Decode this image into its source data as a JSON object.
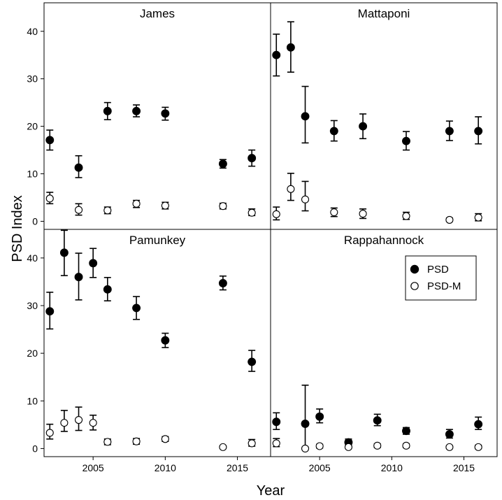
{
  "chart_data": {
    "type": "scatter",
    "xlabel": "Year",
    "ylabel": "PSD Index",
    "xlim": [
      2001.6,
      2017.3
    ],
    "ylim": [
      -1.7,
      46
    ],
    "x_ticks": [
      2005,
      2010,
      2015
    ],
    "y_ticks": [
      0,
      10,
      20,
      30,
      40
    ],
    "legend": {
      "placement": "Rappahannock panel, upper-right",
      "entries": [
        {
          "label": "PSD",
          "marker": "filled-circle"
        },
        {
          "label": "PSD-M",
          "marker": "open-circle"
        }
      ]
    },
    "panels": [
      {
        "title": "James",
        "series": [
          {
            "name": "PSD",
            "points": [
              {
                "x": 2002,
                "y": 17.1,
                "lo": 15.0,
                "hi": 19.2
              },
              {
                "x": 2004,
                "y": 11.3,
                "lo": 9.2,
                "hi": 13.8
              },
              {
                "x": 2006,
                "y": 23.2,
                "lo": 21.4,
                "hi": 25.0
              },
              {
                "x": 2008,
                "y": 23.2,
                "lo": 22.0,
                "hi": 24.5
              },
              {
                "x": 2010,
                "y": 22.7,
                "lo": 21.3,
                "hi": 24.0
              },
              {
                "x": 2014,
                "y": 12.1,
                "lo": 11.2,
                "hi": 13.0
              },
              {
                "x": 2016,
                "y": 13.3,
                "lo": 11.6,
                "hi": 15.0
              }
            ]
          },
          {
            "name": "PSD-M",
            "points": [
              {
                "x": 2002,
                "y": 4.8,
                "lo": 3.7,
                "hi": 6.1
              },
              {
                "x": 2004,
                "y": 2.4,
                "lo": 1.3,
                "hi": 3.7
              },
              {
                "x": 2006,
                "y": 2.3,
                "lo": 1.6,
                "hi": 3.0
              },
              {
                "x": 2008,
                "y": 3.7,
                "lo": 2.9,
                "hi": 4.4
              },
              {
                "x": 2010,
                "y": 3.3,
                "lo": 2.6,
                "hi": 4.0
              },
              {
                "x": 2014,
                "y": 3.2,
                "lo": 2.6,
                "hi": 3.8
              },
              {
                "x": 2016,
                "y": 1.8,
                "lo": 1.2,
                "hi": 2.6
              }
            ]
          }
        ]
      },
      {
        "title": "Mattaponi",
        "series": [
          {
            "name": "PSD",
            "points": [
              {
                "x": 2002,
                "y": 35.0,
                "lo": 30.6,
                "hi": 39.4
              },
              {
                "x": 2003,
                "y": 36.6,
                "lo": 31.4,
                "hi": 42.0
              },
              {
                "x": 2004,
                "y": 22.1,
                "lo": 16.5,
                "hi": 28.4
              },
              {
                "x": 2006,
                "y": 19.0,
                "lo": 16.9,
                "hi": 21.2
              },
              {
                "x": 2008,
                "y": 20.0,
                "lo": 17.4,
                "hi": 22.6
              },
              {
                "x": 2011,
                "y": 16.9,
                "lo": 15.0,
                "hi": 18.9
              },
              {
                "x": 2014,
                "y": 19.0,
                "lo": 17.0,
                "hi": 21.1
              },
              {
                "x": 2016,
                "y": 19.0,
                "lo": 16.3,
                "hi": 22.0
              }
            ]
          },
          {
            "name": "PSD-M",
            "points": [
              {
                "x": 2002,
                "y": 1.5,
                "lo": 0.3,
                "hi": 3.0
              },
              {
                "x": 2003,
                "y": 6.8,
                "lo": 4.4,
                "hi": 10.1
              },
              {
                "x": 2004,
                "y": 4.6,
                "lo": 2.2,
                "hi": 8.4
              },
              {
                "x": 2006,
                "y": 1.9,
                "lo": 1.0,
                "hi": 2.8
              },
              {
                "x": 2008,
                "y": 1.6,
                "lo": 0.6,
                "hi": 2.6
              },
              {
                "x": 2011,
                "y": 1.1,
                "lo": 0.4,
                "hi": 1.9
              },
              {
                "x": 2014,
                "y": 0.3,
                "lo": 0.0,
                "hi": 0.7
              },
              {
                "x": 2016,
                "y": 0.8,
                "lo": 0.1,
                "hi": 1.6
              }
            ]
          }
        ]
      },
      {
        "title": "Pamunkey",
        "series": [
          {
            "name": "PSD",
            "points": [
              {
                "x": 2002,
                "y": 28.8,
                "lo": 25.1,
                "hi": 32.8
              },
              {
                "x": 2003,
                "y": 41.1,
                "lo": 36.3,
                "hi": 45.8
              },
              {
                "x": 2004,
                "y": 36.0,
                "lo": 31.2,
                "hi": 41.0
              },
              {
                "x": 2005,
                "y": 38.9,
                "lo": 35.9,
                "hi": 42.0
              },
              {
                "x": 2006,
                "y": 33.4,
                "lo": 31.0,
                "hi": 35.9
              },
              {
                "x": 2008,
                "y": 29.5,
                "lo": 27.1,
                "hi": 31.9
              },
              {
                "x": 2010,
                "y": 22.7,
                "lo": 21.2,
                "hi": 24.2
              },
              {
                "x": 2014,
                "y": 34.7,
                "lo": 33.3,
                "hi": 36.2
              },
              {
                "x": 2016,
                "y": 18.2,
                "lo": 16.2,
                "hi": 20.6
              }
            ]
          },
          {
            "name": "PSD-M",
            "points": [
              {
                "x": 2002,
                "y": 3.3,
                "lo": 2.0,
                "hi": 5.1
              },
              {
                "x": 2003,
                "y": 5.4,
                "lo": 3.6,
                "hi": 8.0
              },
              {
                "x": 2004,
                "y": 6.0,
                "lo": 3.8,
                "hi": 8.7
              },
              {
                "x": 2005,
                "y": 5.4,
                "lo": 3.9,
                "hi": 7.0
              },
              {
                "x": 2006,
                "y": 1.4,
                "lo": 0.8,
                "hi": 2.0
              },
              {
                "x": 2008,
                "y": 1.5,
                "lo": 0.9,
                "hi": 2.1
              },
              {
                "x": 2010,
                "y": 2.0,
                "lo": 1.5,
                "hi": 2.5
              },
              {
                "x": 2014,
                "y": 0.3,
                "lo": 0.1,
                "hi": 0.6
              },
              {
                "x": 2016,
                "y": 1.1,
                "lo": 0.5,
                "hi": 1.9
              }
            ]
          }
        ]
      },
      {
        "title": "Rappahannock",
        "series": [
          {
            "name": "PSD",
            "points": [
              {
                "x": 2002,
                "y": 5.6,
                "lo": 4.0,
                "hi": 7.5
              },
              {
                "x": 2004,
                "y": 5.2,
                "lo": 0.2,
                "hi": 13.3
              },
              {
                "x": 2005,
                "y": 6.7,
                "lo": 5.4,
                "hi": 8.3
              },
              {
                "x": 2007,
                "y": 1.3,
                "lo": 0.7,
                "hi": 2.0
              },
              {
                "x": 2009,
                "y": 5.9,
                "lo": 4.8,
                "hi": 7.2
              },
              {
                "x": 2011,
                "y": 3.7,
                "lo": 3.0,
                "hi": 4.4
              },
              {
                "x": 2014,
                "y": 3.0,
                "lo": 2.2,
                "hi": 4.0
              },
              {
                "x": 2016,
                "y": 5.1,
                "lo": 4.0,
                "hi": 6.6
              }
            ]
          },
          {
            "name": "PSD-M",
            "points": [
              {
                "x": 2002,
                "y": 1.1,
                "lo": 0.4,
                "hi": 2.1
              },
              {
                "x": 2004,
                "y": 0.0,
                "lo": 0.0,
                "hi": 0.3
              },
              {
                "x": 2005,
                "y": 0.5,
                "lo": 0.1,
                "hi": 0.9
              },
              {
                "x": 2007,
                "y": 0.3,
                "lo": 0.0,
                "hi": 0.7
              },
              {
                "x": 2009,
                "y": 0.6,
                "lo": 0.2,
                "hi": 1.0
              },
              {
                "x": 2011,
                "y": 0.6,
                "lo": 0.2,
                "hi": 1.0
              },
              {
                "x": 2014,
                "y": 0.3,
                "lo": 0.0,
                "hi": 0.6
              },
              {
                "x": 2016,
                "y": 0.3,
                "lo": 0.0,
                "hi": 0.7
              }
            ]
          }
        ]
      }
    ]
  }
}
